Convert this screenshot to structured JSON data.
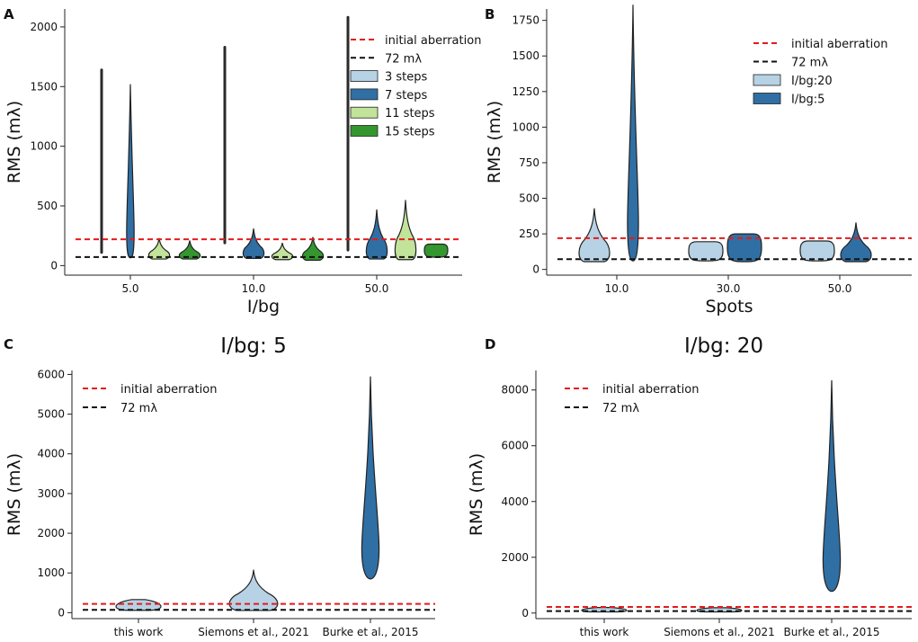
{
  "figure_letters": [
    "A",
    "B",
    "C",
    "D"
  ],
  "colors": {
    "initial": "#e41a1c",
    "target": "#111111",
    "light_blue": "#b6d2e4",
    "dark_blue": "#2f6fa4",
    "light_green": "#c2e39a",
    "dark_green": "#34962f",
    "violin_edge": "#222222",
    "stick": "#2a2a2a"
  },
  "chart_data": [
    {
      "id": "A",
      "type": "violin",
      "title": "",
      "xlabel": "I/bg",
      "ylabel": "RMS (mλ)",
      "ylim": [
        -80,
        2150
      ],
      "yticks": [
        0,
        500,
        1000,
        1500,
        2000
      ],
      "categories": [
        "5.0",
        "10.0",
        "50.0"
      ],
      "hlines": [
        {
          "label": "initial aberration",
          "value": 220,
          "color_key": "initial"
        },
        {
          "label": "72 mλ",
          "value": 72,
          "color_key": "target"
        }
      ],
      "legend_position": "top-right",
      "series": [
        {
          "name": "3 steps",
          "color_key": "light_blue",
          "violins": [
            {
              "min": 110,
              "max": 1640,
              "shape": "stick"
            },
            {
              "min": 190,
              "max": 1830,
              "shape": "stick"
            },
            {
              "min": 130,
              "max": 2080,
              "shape": "stick"
            }
          ]
        },
        {
          "name": "7 steps",
          "color_key": "dark_blue",
          "violins": [
            {
              "min": 65,
              "max": 1520,
              "shape": "spike"
            },
            {
              "min": 60,
              "max": 310,
              "shape": "bulb"
            },
            {
              "min": 55,
              "max": 470,
              "shape": "bulb"
            }
          ]
        },
        {
          "name": "11 steps",
          "color_key": "light_green",
          "violins": [
            {
              "min": 55,
              "max": 230,
              "shape": "bulb"
            },
            {
              "min": 50,
              "max": 190,
              "shape": "bulb"
            },
            {
              "min": 50,
              "max": 550,
              "shape": "bulb"
            }
          ]
        },
        {
          "name": "15 steps",
          "color_key": "dark_green",
          "violins": [
            {
              "min": 55,
              "max": 210,
              "shape": "bulb"
            },
            {
              "min": 45,
              "max": 240,
              "shape": "bulb"
            },
            {
              "min": 70,
              "max": 180,
              "shape": "block"
            }
          ]
        }
      ]
    },
    {
      "id": "B",
      "type": "violin",
      "title": "",
      "xlabel": "Spots",
      "ylabel": "RMS (mλ)",
      "ylim": [
        -40,
        1830
      ],
      "yticks": [
        0,
        250,
        500,
        750,
        1000,
        1250,
        1500,
        1750
      ],
      "categories": [
        "10.0",
        "30.0",
        "50.0"
      ],
      "hlines": [
        {
          "label": "initial aberration",
          "value": 220,
          "color_key": "initial"
        },
        {
          "label": "72 mλ",
          "value": 72,
          "color_key": "target"
        }
      ],
      "legend_position": "top-right",
      "series": [
        {
          "name": "I/bg:20",
          "color_key": "light_blue",
          "violins": [
            {
              "min": 55,
              "max": 430,
              "shape": "bulb"
            },
            {
              "min": 60,
              "max": 195,
              "shape": "block"
            },
            {
              "min": 60,
              "max": 200,
              "shape": "block"
            }
          ]
        },
        {
          "name": "I/bg:5",
          "color_key": "dark_blue",
          "violins": [
            {
              "min": 60,
              "max": 1860,
              "shape": "spike"
            },
            {
              "min": 55,
              "max": 250,
              "shape": "block"
            },
            {
              "min": 55,
              "max": 330,
              "shape": "bulb"
            }
          ]
        }
      ]
    },
    {
      "id": "C",
      "type": "violin",
      "title": "I/bg: 5",
      "xlabel": "",
      "ylabel": "RMS (mλ)",
      "ylim": [
        -150,
        6100
      ],
      "yticks": [
        0,
        1000,
        2000,
        3000,
        4000,
        5000,
        6000
      ],
      "categories": [
        "this work",
        "Siemons et al., 2021",
        "Burke et al., 2015"
      ],
      "hlines": [
        {
          "label": "initial aberration",
          "value": 220,
          "color_key": "initial"
        },
        {
          "label": "72 mλ",
          "value": 72,
          "color_key": "target"
        }
      ],
      "legend_position": "top-left",
      "violins": [
        {
          "category": "this work",
          "min": 60,
          "max": 330,
          "shape": "flat",
          "color_key": "light_blue"
        },
        {
          "category": "Siemons et al., 2021",
          "min": 55,
          "max": 1080,
          "shape": "bulb",
          "color_key": "light_blue"
        },
        {
          "category": "Burke et al., 2015",
          "min": 850,
          "max": 5950,
          "shape": "spike",
          "color_key": "dark_blue"
        }
      ]
    },
    {
      "id": "D",
      "type": "violin",
      "title": "I/bg: 20",
      "xlabel": "",
      "ylabel": "RMS (mλ)",
      "ylim": [
        -200,
        8700
      ],
      "yticks": [
        0,
        2000,
        4000,
        6000,
        8000
      ],
      "categories": [
        "this work",
        "Siemons et al., 2021",
        "Burke et al., 2015"
      ],
      "hlines": [
        {
          "label": "initial aberration",
          "value": 220,
          "color_key": "initial"
        },
        {
          "label": "72 mλ",
          "value": 72,
          "color_key": "target"
        }
      ],
      "legend_position": "top-left",
      "violins": [
        {
          "category": "this work",
          "min": 40,
          "max": 200,
          "shape": "flat",
          "color_key": "light_blue"
        },
        {
          "category": "Siemons et al., 2021",
          "min": 40,
          "max": 190,
          "shape": "flat",
          "color_key": "light_blue"
        },
        {
          "category": "Burke et al., 2015",
          "min": 780,
          "max": 8350,
          "shape": "spike",
          "color_key": "dark_blue"
        }
      ]
    }
  ]
}
